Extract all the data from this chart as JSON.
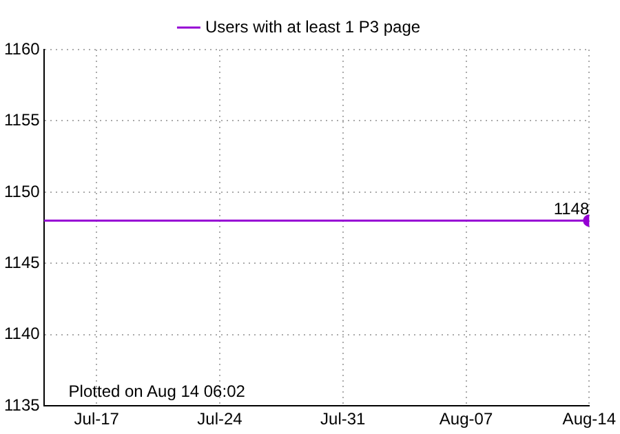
{
  "chart_data": {
    "type": "line",
    "x": [
      "--07-14",
      "--08-14"
    ],
    "series": [
      {
        "name": "Users with at least 1 P3 page",
        "color": "#9400d3",
        "values": [
          1148,
          1148
        ],
        "marker": "none"
      },
      {
        "type": "scatter",
        "x": [
          "--08-14"
        ],
        "color": "#9400d3",
        "values": [
          1148
        ],
        "marker": "circle",
        "value_labels": [
          "1148"
        ]
      }
    ],
    "xlim": [
      "--07-14",
      "--08-14"
    ],
    "xticks": [
      {
        "value": "--07-17",
        "label": "Jul-17"
      },
      {
        "value": "--07-24",
        "label": "Jul-24"
      },
      {
        "value": "--07-31",
        "label": "Jul-31"
      },
      {
        "value": "--08-07",
        "label": "Aug-07"
      },
      {
        "value": "--08-14",
        "label": "Aug-14"
      }
    ],
    "ylim": [
      1135,
      1160
    ],
    "yticks": [
      1135,
      1140,
      1145,
      1150,
      1155,
      1160
    ],
    "grid": true,
    "legend": "top",
    "annotations": [
      "Plotted on Aug 14 06:02"
    ]
  }
}
